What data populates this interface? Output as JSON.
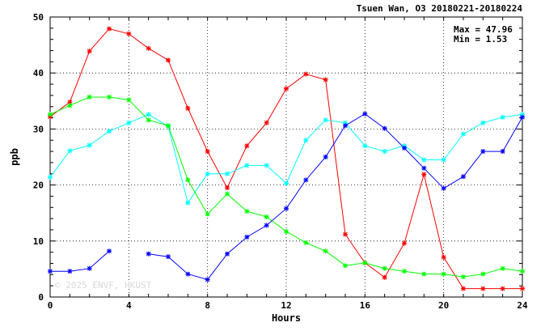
{
  "chart_data": {
    "type": "line",
    "title": "Tsuen Wan, O3 20180221-20180224",
    "xlabel": "Hours",
    "ylabel": "ppb",
    "xlim": [
      0,
      24
    ],
    "ylim": [
      0,
      50
    ],
    "x_ticks": [
      0,
      4,
      8,
      12,
      16,
      20,
      24
    ],
    "y_ticks": [
      0,
      10,
      20,
      30,
      40,
      50
    ],
    "grid": true,
    "stats": {
      "max_label": "Max = 47.96",
      "min_label": "Min =  1.53"
    },
    "watermark": "© 2025  ENVF, HKUST",
    "x": [
      0,
      1,
      2,
      3,
      4,
      5,
      6,
      7,
      8,
      9,
      10,
      11,
      12,
      13,
      14,
      15,
      16,
      17,
      18,
      19,
      20,
      21,
      22,
      23,
      24
    ],
    "series": [
      {
        "color": "#ff0000",
        "values": [
          32.2,
          34.8,
          43.9,
          47.9,
          47.0,
          44.4,
          42.3,
          33.7,
          26.0,
          19.5,
          27.0,
          31.1,
          37.2,
          39.8,
          38.8,
          11.2,
          6.1,
          3.5,
          9.6,
          21.9,
          7.1,
          1.5,
          1.5,
          1.5,
          1.5
        ]
      },
      {
        "color": "#00ffff",
        "values": [
          21.4,
          26.1,
          27.1,
          29.6,
          31.1,
          32.6,
          30.5,
          16.8,
          22.0,
          22.0,
          23.5,
          23.5,
          20.3,
          28.0,
          31.6,
          31.1,
          27.0,
          26.0,
          27.0,
          24.5,
          24.5,
          29.1,
          31.1,
          32.1,
          32.6
        ]
      },
      {
        "color": "#00ff00",
        "values": [
          32.6,
          34.2,
          35.7,
          35.7,
          35.2,
          31.6,
          30.6,
          20.9,
          14.8,
          18.4,
          15.3,
          14.3,
          11.7,
          9.7,
          8.2,
          5.6,
          6.1,
          5.1,
          4.6,
          4.1,
          4.1,
          3.6,
          4.1,
          5.1,
          4.6
        ]
      },
      {
        "color": "#0000ff",
        "values": [
          4.6,
          4.6,
          5.1,
          8.2,
          null,
          7.7,
          7.2,
          4.1,
          3.1,
          7.7,
          10.7,
          12.8,
          15.8,
          20.9,
          25.0,
          30.6,
          32.7,
          30.1,
          26.6,
          23.0,
          19.4,
          21.5,
          26.0,
          26.0,
          32.1
        ]
      }
    ]
  }
}
